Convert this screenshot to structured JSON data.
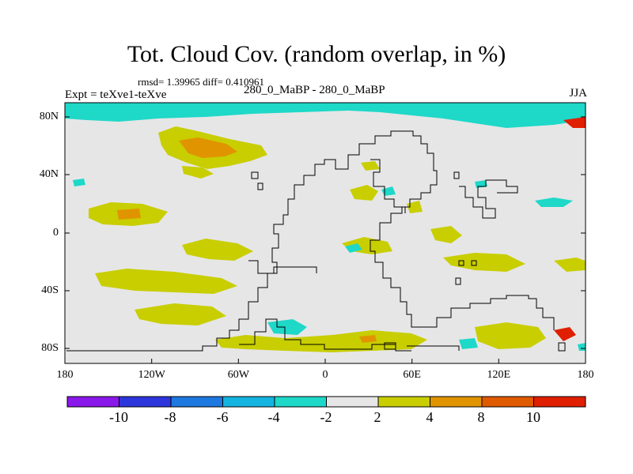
{
  "title": "Tot. Cloud Cov. (random overlap, in %)",
  "stats": "rmsd= 1.39965 diff= 0.410961",
  "experiment": "Expt = teXve1-teXve",
  "center_label": "280_0_MaBP - 280_0_MaBP",
  "season": "JJA",
  "x_ticks": [
    "180",
    "120W",
    "60W",
    "0",
    "60E",
    "120E",
    "180"
  ],
  "y_ticks": [
    "80N",
    "40N",
    "0",
    "40S",
    "80S"
  ],
  "colorbar": {
    "labels": [
      "-10",
      "-8",
      "-6",
      "-4",
      "-2",
      "2",
      "4",
      "8",
      "10"
    ],
    "colors": [
      "#8b18ea",
      "#2d36dc",
      "#1d78e0",
      "#14b4e0",
      "#1ed8c8",
      "#e6e6e6",
      "#c8ce00",
      "#e09400",
      "#e05a00",
      "#e01e00"
    ]
  },
  "colors": {
    "background_field": "#e6e6e6",
    "neg_2_4": "#1ed8c8",
    "pos_2_4": "#c8ce00",
    "pos_4_8": "#e09400",
    "pos_10_plus": "#e01e00"
  }
}
